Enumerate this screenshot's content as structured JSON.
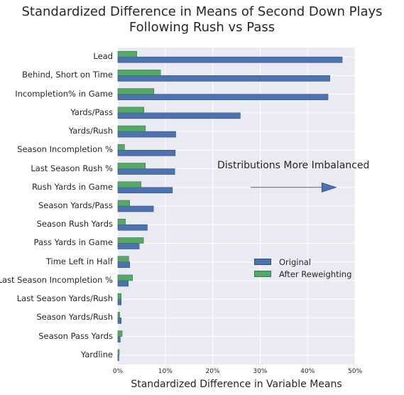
{
  "chart_data": {
    "type": "bar",
    "orientation": "horizontal",
    "title_lines": [
      "Standardized Difference in Means of Second Down Plays",
      "Following Rush vs Pass"
    ],
    "xlabel": "Standardized Difference in Variable Means",
    "ylabel": "",
    "xlim": [
      0,
      0.5
    ],
    "xticks": [
      0,
      0.1,
      0.2,
      0.3,
      0.4,
      0.5
    ],
    "xtick_labels": [
      "0%",
      "10%",
      "20%",
      "30%",
      "40%",
      "50%"
    ],
    "grid": true,
    "legend_position": "lower-right",
    "categories": [
      "Lead",
      "Behind, Short on Time",
      "Incompletion% in Game",
      "Yards/Pass",
      "Yards/Rush",
      "Season Incompletion %",
      "Last Season Rush %",
      "Rush Yards in Game",
      "Season Yards/Pass",
      "Season Rush Yards",
      "Pass Yards in Game",
      "Time Left in Half",
      "Last Season Incompletion %",
      "Last Season Yards/Rush",
      "Season Yards/Rush",
      "Season Pass Yards",
      "Yardline"
    ],
    "series": [
      {
        "name": "Original",
        "color": "#4c72b0",
        "values": [
          0.473,
          0.447,
          0.443,
          0.258,
          0.122,
          0.121,
          0.12,
          0.115,
          0.075,
          0.062,
          0.045,
          0.025,
          0.022,
          0.007,
          0.007,
          0.005,
          0.002
        ]
      },
      {
        "name": "After Reweighting",
        "color": "#55a868",
        "values": [
          0.04,
          0.09,
          0.076,
          0.055,
          0.058,
          0.014,
          0.058,
          0.049,
          0.025,
          0.016,
          0.054,
          0.023,
          0.031,
          0.007,
          0.004,
          0.009,
          0.003
        ]
      }
    ],
    "annotations": [
      {
        "text": "Distributions More Imbalanced",
        "arrow_from_x": 0.28,
        "arrow_to_x": 0.46,
        "at_category": "Rush Yards in Game"
      }
    ],
    "colors": {
      "background": "#eaeaf2",
      "grid": "#ffffff"
    }
  }
}
